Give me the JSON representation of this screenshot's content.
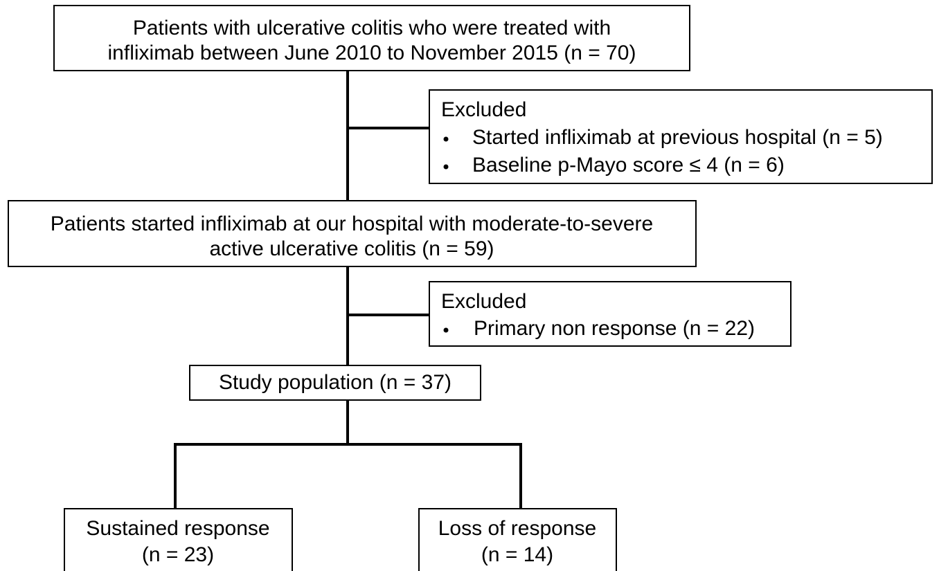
{
  "nodes": [
    {
      "lines": [
        "Patients with ulcerative colitis who were treated with",
        "infliximab between June 2010 to November 2015 (n = 70)"
      ]
    },
    {
      "lines": [
        "Patients started infliximab at our hospital with moderate-to-severe",
        "active ulcerative colitis (n = 59)"
      ]
    },
    {
      "lines": [
        "Study population (n = 37)"
      ]
    },
    {
      "lines": [
        "Sustained response",
        "(n = 23)"
      ]
    },
    {
      "lines": [
        "Loss of response",
        "(n = 14)"
      ]
    }
  ],
  "exclusions": [
    {
      "title": "Excluded",
      "items": [
        "Started infliximab at previous hospital (n = 5)",
        "Baseline p-Mayo score ≤ 4 (n = 6)"
      ]
    },
    {
      "title": "Excluded",
      "items": [
        "Primary non response (n = 22)"
      ]
    }
  ]
}
